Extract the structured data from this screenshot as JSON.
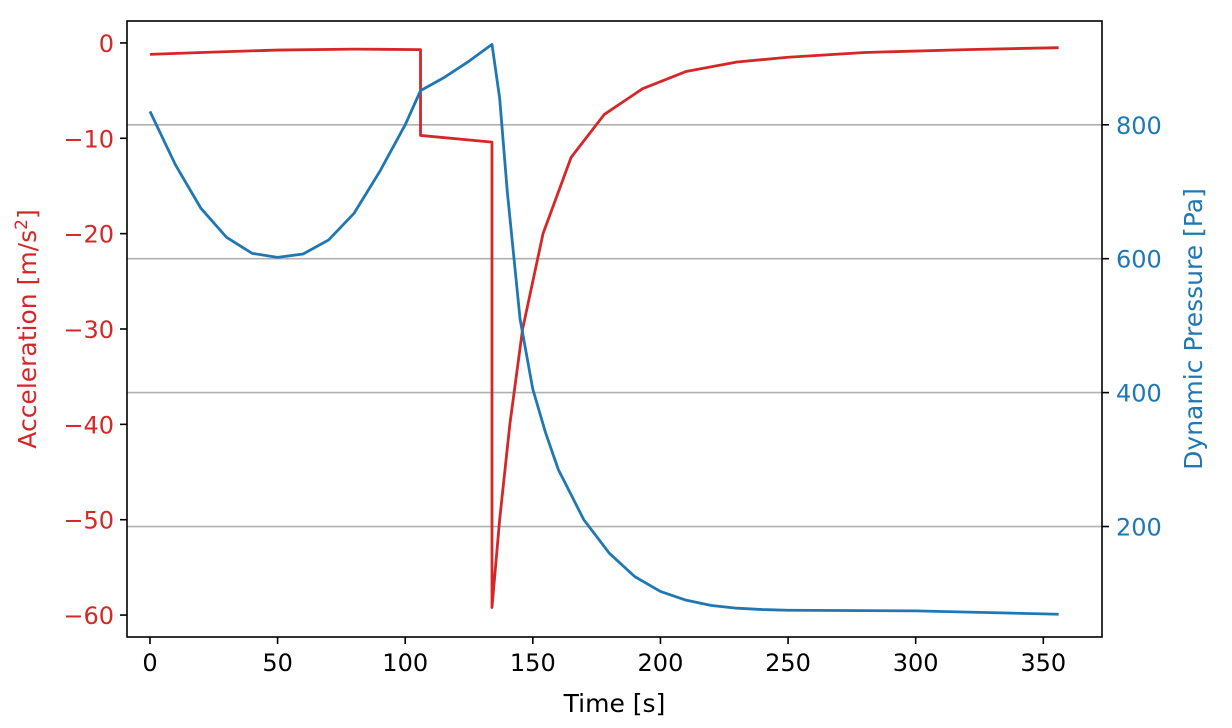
{
  "colors": {
    "acceleration": "#d62728",
    "dynamic_pressure": "#1f77b4",
    "axes": "#000000",
    "grid": "#b0b0b0"
  },
  "chart_data": {
    "type": "line",
    "xlabel": "Time [s]",
    "ylabel_left": "Acceleration [m/s",
    "ylabel_left_sup": "2",
    "ylabel_left_tail": "]",
    "ylabel_right": "Dynamic Pressure [Pa]",
    "xlim": [
      -9,
      373
    ],
    "ylim_left": [
      -62.3,
      2.3
    ],
    "ylim_right": [
      35,
      955
    ],
    "grid": "horizontal lines at right-axis ticks",
    "x_ticks": [
      0,
      50,
      100,
      150,
      200,
      250,
      300,
      350
    ],
    "x_tick_labels": [
      "0",
      "50",
      "100",
      "150",
      "200",
      "250",
      "300",
      "350"
    ],
    "y_left_ticks": [
      0,
      -10,
      -20,
      -30,
      -40,
      -50,
      -60
    ],
    "y_left_tick_labels": [
      "0",
      "−10",
      "−20",
      "−30",
      "−40",
      "−50",
      "−60"
    ],
    "y_right_ticks": [
      800,
      600,
      400,
      200
    ],
    "y_right_tick_labels": [
      "800",
      "600",
      "400",
      "200"
    ],
    "series": [
      {
        "axis": "left",
        "points": [
          [
            0,
            -1.2
          ],
          [
            20,
            -1.0
          ],
          [
            50,
            -0.75
          ],
          [
            80,
            -0.65
          ],
          [
            106,
            -0.7
          ],
          [
            106,
            -9.7
          ],
          [
            134,
            -10.4
          ],
          [
            134,
            -59.2
          ],
          [
            137,
            -50.0
          ],
          [
            141,
            -40.0
          ],
          [
            146,
            -30.0
          ],
          [
            154,
            -20.0
          ],
          [
            165,
            -12.0
          ],
          [
            178,
            -7.5
          ],
          [
            193,
            -4.8
          ],
          [
            210,
            -3.0
          ],
          [
            230,
            -2.0
          ],
          [
            250,
            -1.5
          ],
          [
            280,
            -1.0
          ],
          [
            320,
            -0.7
          ],
          [
            356,
            -0.5
          ]
        ]
      },
      {
        "axis": "right",
        "points": [
          [
            0,
            820
          ],
          [
            10,
            740
          ],
          [
            20,
            675
          ],
          [
            30,
            632
          ],
          [
            40,
            608
          ],
          [
            50,
            602
          ],
          [
            60,
            607
          ],
          [
            70,
            628
          ],
          [
            80,
            668
          ],
          [
            90,
            730
          ],
          [
            100,
            800
          ],
          [
            106,
            851
          ],
          [
            115,
            870
          ],
          [
            125,
            895
          ],
          [
            134,
            920
          ],
          [
            137,
            840
          ],
          [
            140,
            700
          ],
          [
            145,
            510
          ],
          [
            150,
            405
          ],
          [
            155,
            340
          ],
          [
            160,
            285
          ],
          [
            170,
            210
          ],
          [
            180,
            160
          ],
          [
            190,
            125
          ],
          [
            200,
            103
          ],
          [
            210,
            90
          ],
          [
            220,
            82
          ],
          [
            230,
            78
          ],
          [
            240,
            76
          ],
          [
            250,
            75
          ],
          [
            300,
            74
          ],
          [
            356,
            69
          ]
        ]
      }
    ]
  }
}
